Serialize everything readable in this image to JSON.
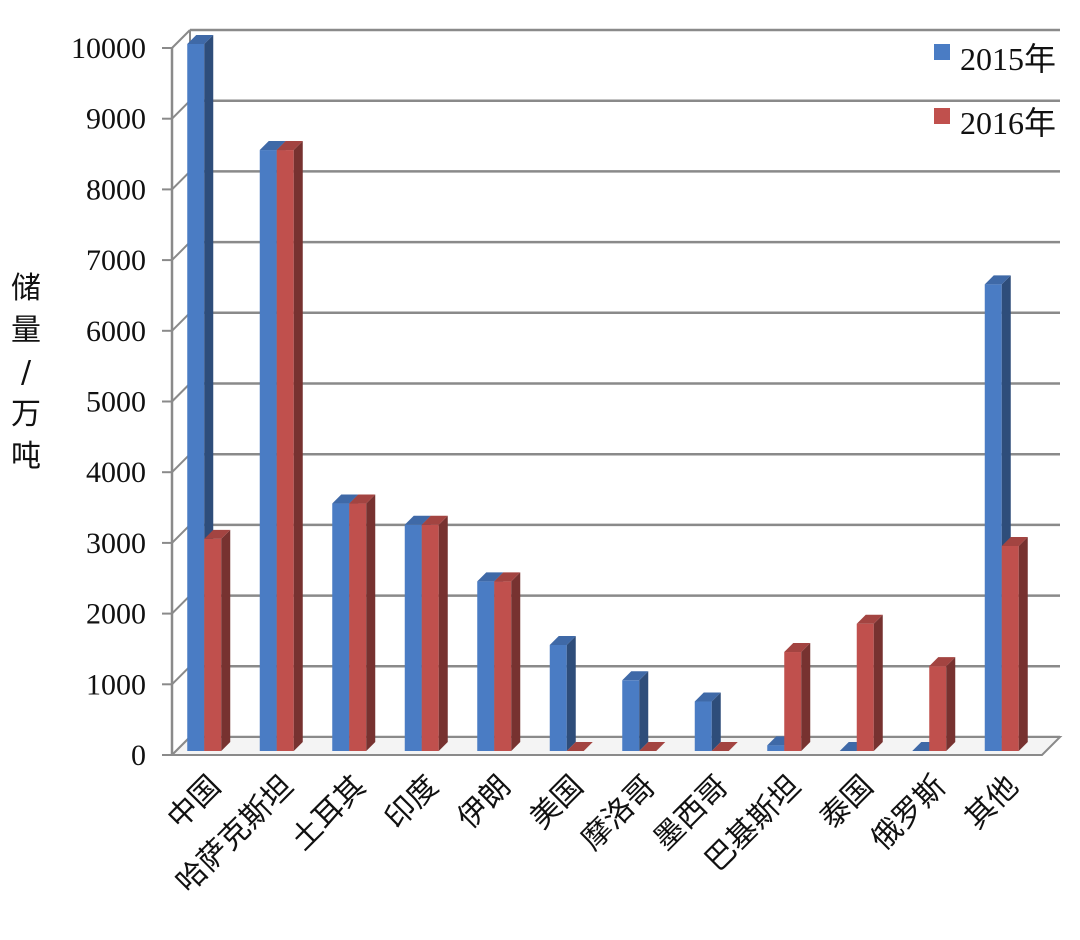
{
  "chart_data": {
    "type": "bar",
    "three_d": true,
    "ylabel": "储量/万吨",
    "ylabel_chars": [
      "储",
      "量",
      "/",
      "万",
      "吨"
    ],
    "ylim": [
      0,
      10000
    ],
    "yticks": [
      0,
      1000,
      2000,
      3000,
      4000,
      5000,
      6000,
      7000,
      8000,
      9000,
      10000
    ],
    "grid": true,
    "legend_position": "top-right",
    "categories": [
      "中国",
      "哈萨克斯坦",
      "土耳其",
      "印度",
      "伊朗",
      "美国",
      "摩洛哥",
      "墨西哥",
      "巴基斯坦",
      "泰国",
      "俄罗斯",
      "其他"
    ],
    "series": [
      {
        "name": "2015年",
        "color": "#4a7cc4",
        "values": [
          10000,
          8500,
          3500,
          3200,
          2400,
          1500,
          1000,
          700,
          80,
          0,
          0,
          6600
        ]
      },
      {
        "name": "2016年",
        "color": "#c0504d",
        "values": [
          3000,
          8500,
          3500,
          3200,
          2400,
          0,
          0,
          0,
          1400,
          1800,
          1200,
          2900
        ]
      }
    ]
  }
}
